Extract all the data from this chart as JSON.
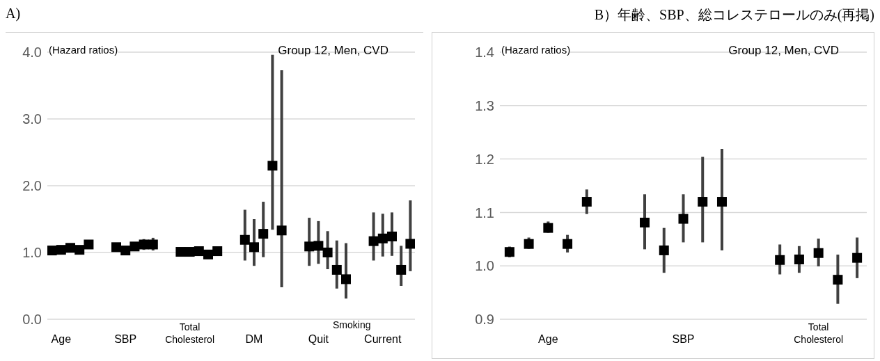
{
  "chart_data": [
    {
      "type": "scatter",
      "title": "A)",
      "ylabel": "(Hazard ratios)",
      "subtitle": "Group 12, Men, CVD",
      "annotations": [
        "Smoking"
      ],
      "categories": [
        null,
        "Age",
        null,
        null,
        null,
        null,
        null,
        null,
        "SBP",
        null,
        null,
        null,
        null,
        null,
        null,
        "Total Cholesterol",
        null,
        null,
        null,
        null,
        null,
        null,
        "DM",
        null,
        null,
        null,
        null,
        null,
        null,
        "Quit",
        null,
        null,
        null,
        null,
        null,
        null,
        "Current",
        null,
        null,
        null
      ],
      "series": [
        {
          "color": "#000000",
          "values": [
            1.03,
            1.04,
            1.07,
            1.04,
            1.12,
            null,
            null,
            1.08,
            1.03,
            1.09,
            1.12,
            1.12,
            null,
            null,
            1.01,
            1.01,
            1.02,
            0.97,
            1.02,
            null,
            null,
            1.19,
            1.08,
            1.28,
            2.3,
            1.33,
            null,
            null,
            1.09,
            1.1,
            1.0,
            0.74,
            0.6,
            null,
            null,
            1.17,
            1.21,
            1.24,
            0.74,
            1.13
          ],
          "errors": [
            null,
            null,
            null,
            null,
            null,
            null,
            null,
            [
              1.03,
              1.13
            ],
            null,
            [
              1.04,
              1.13
            ],
            [
              1.04,
              1.2
            ],
            [
              1.03,
              1.22
            ],
            null,
            null,
            null,
            null,
            null,
            null,
            null,
            null,
            null,
            [
              0.88,
              1.64
            ],
            [
              0.8,
              1.5
            ],
            [
              0.93,
              1.76
            ],
            [
              1.34,
              3.96
            ],
            [
              0.48,
              3.73
            ],
            null,
            null,
            [
              0.8,
              1.52
            ],
            [
              0.83,
              1.47
            ],
            [
              0.75,
              1.32
            ],
            [
              0.46,
              1.18
            ],
            [
              0.31,
              1.14
            ],
            null,
            null,
            [
              0.88,
              1.6
            ],
            [
              0.94,
              1.58
            ],
            [
              0.95,
              1.6
            ],
            [
              0.5,
              1.1
            ],
            [
              0.72,
              1.78
            ]
          ]
        }
      ],
      "ylim": [
        0,
        4
      ],
      "yticks": [
        {
          "value": 0,
          "label": "0.0"
        },
        {
          "value": 1,
          "label": "1.0"
        },
        {
          "value": 2,
          "label": "2.0"
        },
        {
          "value": 3,
          "label": "3.0"
        },
        {
          "value": 4,
          "label": "4.0"
        }
      ],
      "grid": "y",
      "marker": "square"
    },
    {
      "type": "scatter",
      "title": "B）年齢、SBP、総コレステロールのみ(再掲)",
      "ylabel": "(Hazard ratios)",
      "subtitle": "Group 12, Men, CVD",
      "categories": [
        null,
        null,
        "Age",
        null,
        null,
        null,
        null,
        null,
        null,
        "SBP",
        null,
        null,
        null,
        null,
        null,
        null,
        "Total Cholesterol",
        null,
        null
      ],
      "series": [
        {
          "color": "#000000",
          "values": [
            1.026,
            1.041,
            1.071,
            1.041,
            1.12,
            null,
            null,
            1.081,
            1.029,
            1.088,
            1.12,
            1.12,
            null,
            null,
            1.011,
            1.012,
            1.024,
            0.974,
            1.015
          ],
          "errors": [
            [
              1.016,
              1.036
            ],
            [
              1.032,
              1.053
            ],
            [
              1.062,
              1.083
            ],
            [
              1.025,
              1.058
            ],
            [
              1.097,
              1.143
            ],
            null,
            null,
            [
              1.031,
              1.134
            ],
            [
              0.987,
              1.071
            ],
            [
              1.044,
              1.134
            ],
            [
              1.044,
              1.204
            ],
            [
              1.029,
              1.219
            ],
            null,
            null,
            [
              0.984,
              1.04
            ],
            [
              0.987,
              1.037
            ],
            [
              0.999,
              1.051
            ],
            [
              0.929,
              1.021
            ],
            [
              0.977,
              1.053
            ]
          ]
        }
      ],
      "ylim": [
        0.9,
        1.4
      ],
      "yticks": [
        0.9,
        {
          "value": 1,
          "label": "1.0"
        },
        1.1,
        1.2,
        1.3,
        1.4
      ],
      "grid": "y",
      "marker": "square"
    }
  ]
}
